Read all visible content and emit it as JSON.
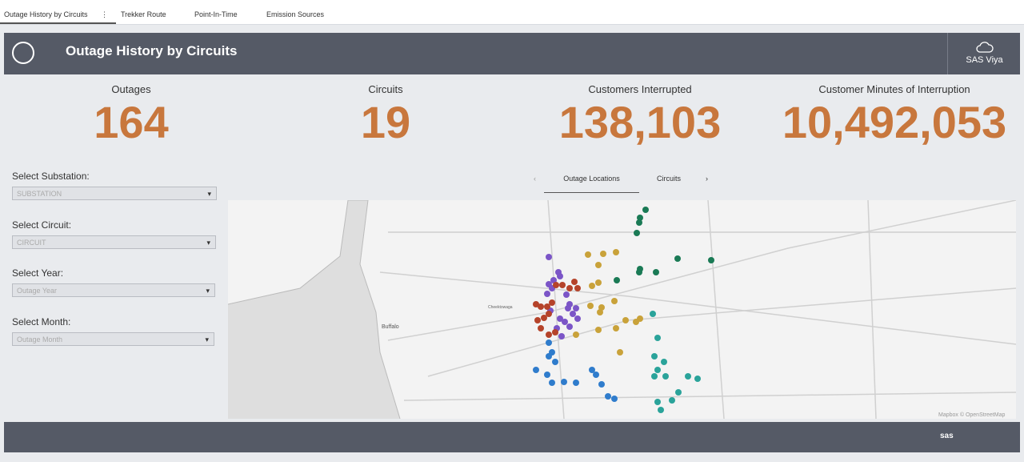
{
  "tabs": [
    "Outage History by Circuits",
    "Trekker Route",
    "Point-In-Time",
    "Emission Sources"
  ],
  "header": {
    "title": "Outage History by Circuits",
    "brand": "SAS Viya"
  },
  "kpis": [
    {
      "label": "Outages",
      "value": "164"
    },
    {
      "label": "Circuits",
      "value": "19"
    },
    {
      "label": "Customers Interrupted",
      "value": "138,103"
    },
    {
      "label": "Customer Minutes of Interruption",
      "value": "10,492,053"
    }
  ],
  "filters": [
    {
      "label": "Select Substation:",
      "placeholder": "SUBSTATION"
    },
    {
      "label": "Select Circuit:",
      "placeholder": "CIRCUIT"
    },
    {
      "label": "Select Year:",
      "placeholder": "Outage Year"
    },
    {
      "label": "Select Month:",
      "placeholder": "Outage Month"
    }
  ],
  "map": {
    "tabs": [
      "Outage Locations",
      "Circuits"
    ],
    "places": [
      "Buffalo",
      "Cheektowaga"
    ],
    "attribution": "Mapbox © OpenStreetMap"
  },
  "footer": {
    "logo": "sas"
  }
}
